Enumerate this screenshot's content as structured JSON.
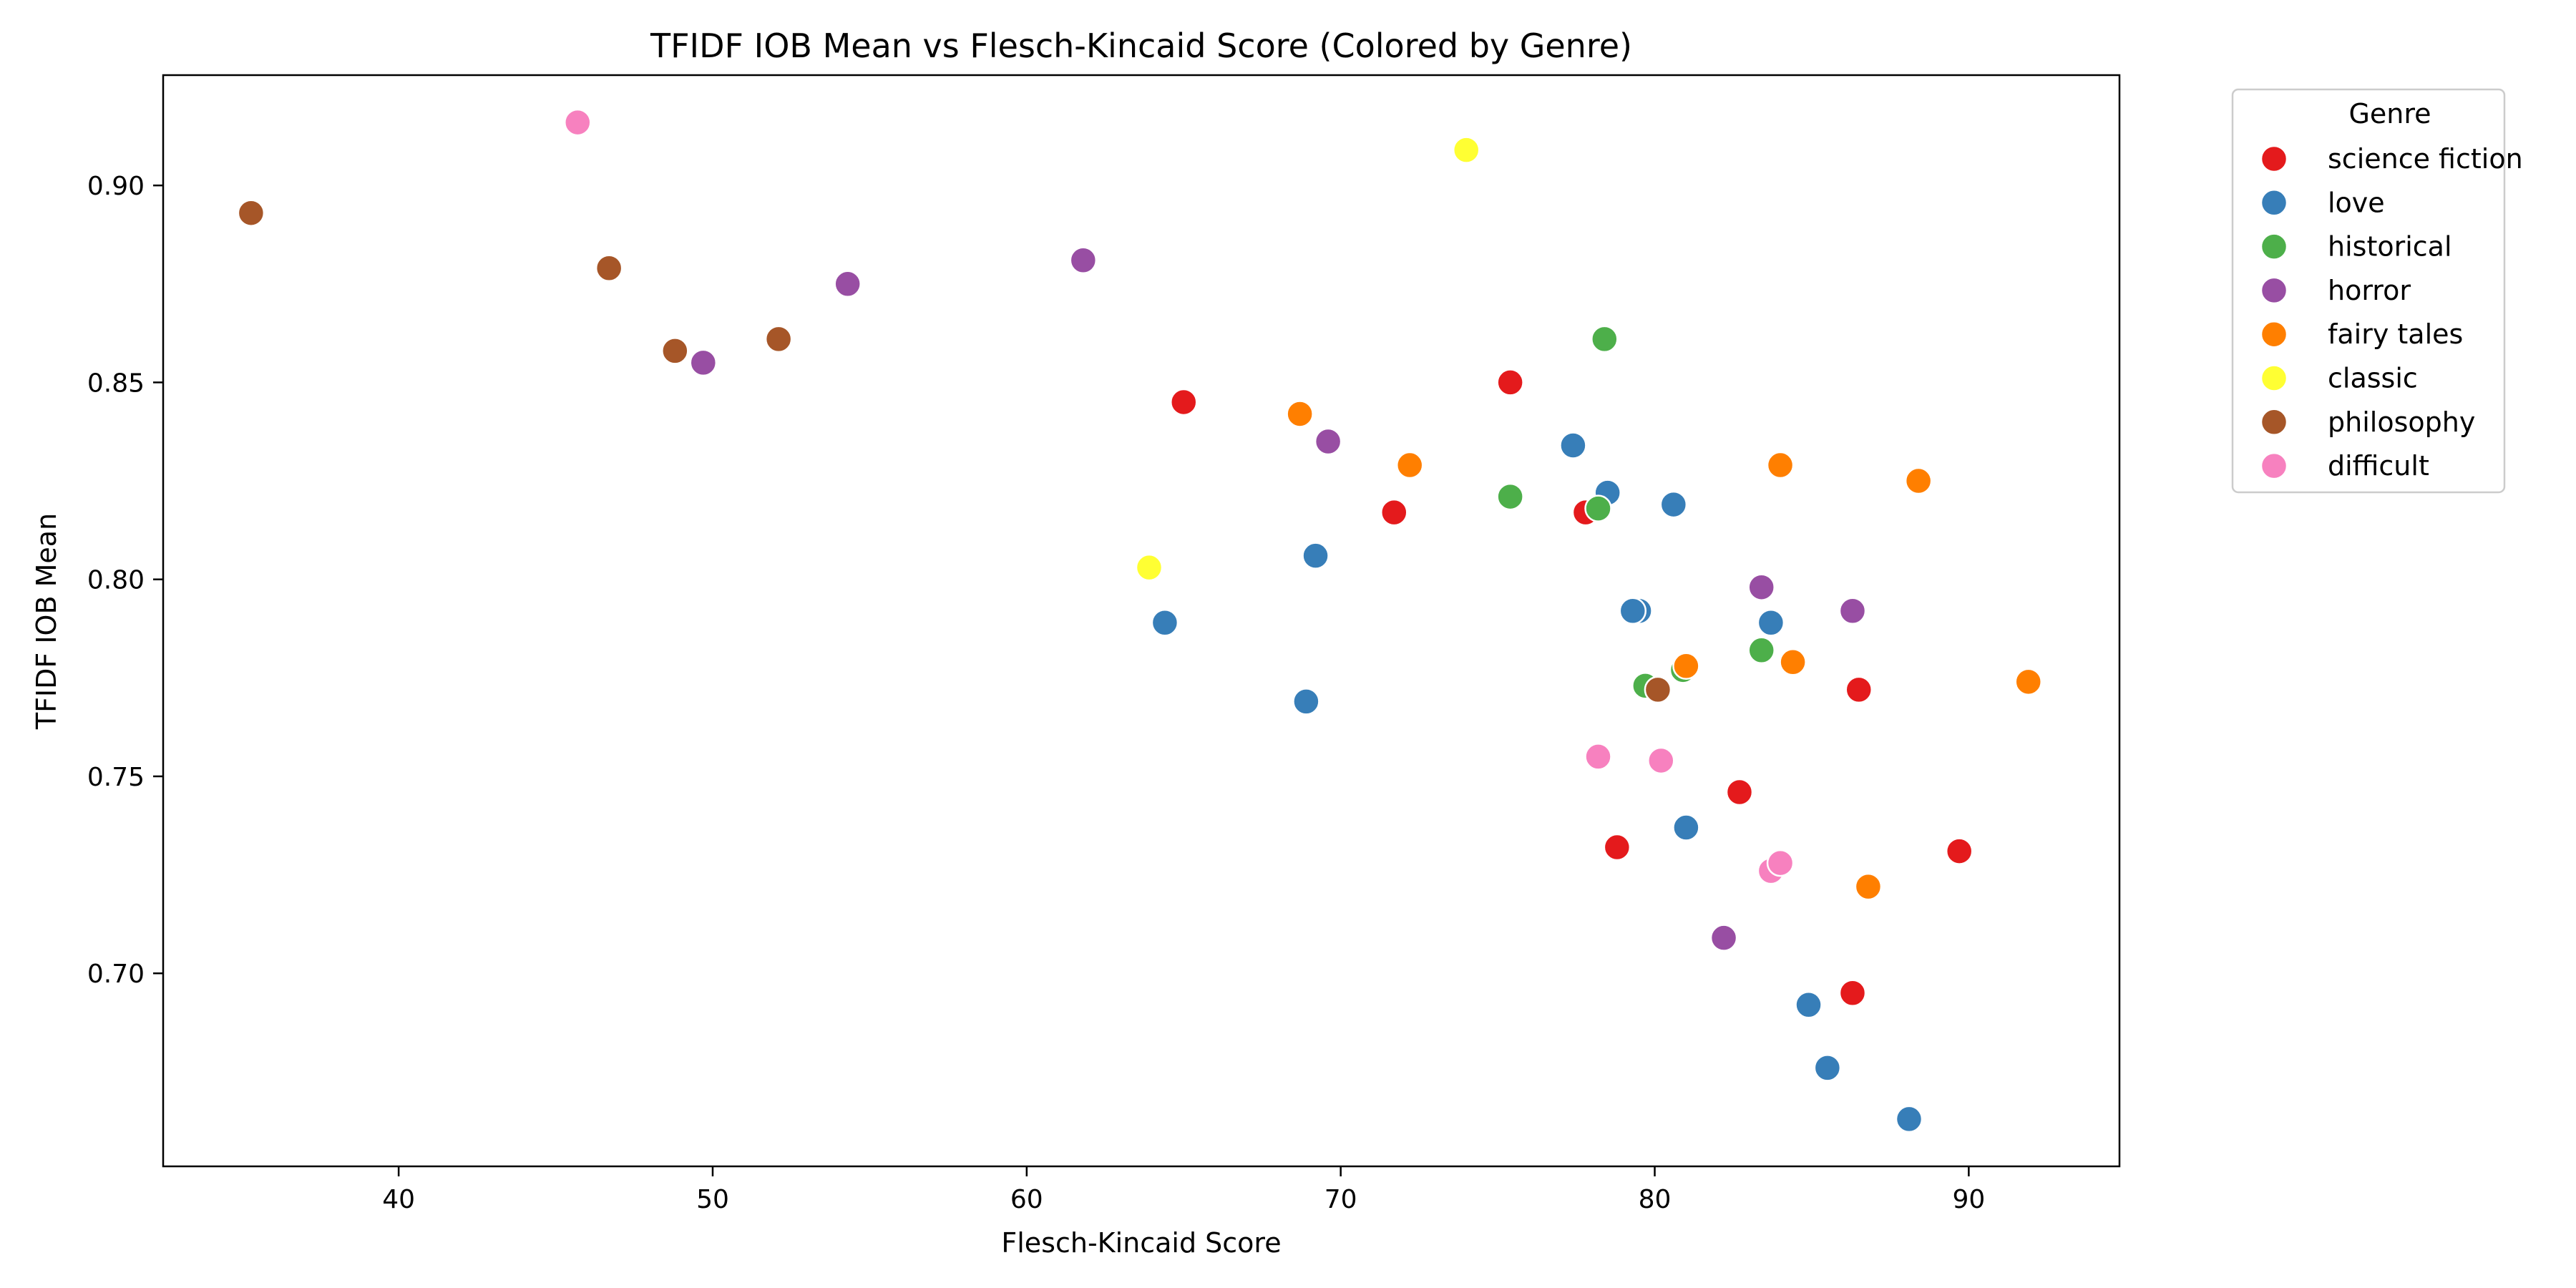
{
  "chart_data": {
    "type": "scatter",
    "title": "TFIDF IOB Mean vs Flesch-Kincaid Score (Colored by Genre)",
    "xlabel": "Flesch-Kincaid Score",
    "ylabel": "TFIDF IOB Mean",
    "xlim": [
      32.5,
      94.8
    ],
    "ylim": [
      0.651,
      0.928
    ],
    "x_ticks": [
      40,
      50,
      60,
      70,
      80,
      90
    ],
    "x_tick_labels": [
      "40",
      "50",
      "60",
      "70",
      "80",
      "90"
    ],
    "y_ticks": [
      0.7,
      0.75,
      0.8,
      0.85,
      0.9
    ],
    "y_tick_labels": [
      "0.70",
      "0.75",
      "0.80",
      "0.85",
      "0.90"
    ],
    "grid": false,
    "legend": {
      "title": "Genre",
      "placement": "outside-upper-right"
    },
    "series": [
      {
        "name": "science fiction",
        "color": "#e41a1c",
        "points": [
          [
            65.0,
            0.845
          ],
          [
            75.4,
            0.85
          ],
          [
            71.7,
            0.817
          ],
          [
            77.8,
            0.817
          ],
          [
            82.7,
            0.746
          ],
          [
            78.8,
            0.732
          ],
          [
            86.5,
            0.772
          ],
          [
            89.7,
            0.731
          ],
          [
            86.3,
            0.695
          ]
        ]
      },
      {
        "name": "love",
        "color": "#377eb8",
        "points": [
          [
            77.4,
            0.834
          ],
          [
            78.5,
            0.822
          ],
          [
            80.6,
            0.819
          ],
          [
            69.2,
            0.806
          ],
          [
            64.4,
            0.789
          ],
          [
            79.5,
            0.792
          ],
          [
            79.3,
            0.792
          ],
          [
            83.7,
            0.789
          ],
          [
            68.9,
            0.769
          ],
          [
            81.0,
            0.737
          ],
          [
            84.9,
            0.692
          ],
          [
            85.5,
            0.676
          ],
          [
            88.1,
            0.663
          ]
        ]
      },
      {
        "name": "historical",
        "color": "#4daf4a",
        "points": [
          [
            78.4,
            0.861
          ],
          [
            75.4,
            0.821
          ],
          [
            78.2,
            0.818
          ],
          [
            83.4,
            0.782
          ],
          [
            80.9,
            0.777
          ],
          [
            79.7,
            0.773
          ]
        ]
      },
      {
        "name": "horror",
        "color": "#984ea3",
        "points": [
          [
            61.8,
            0.881
          ],
          [
            54.3,
            0.875
          ],
          [
            49.7,
            0.855
          ],
          [
            69.6,
            0.835
          ],
          [
            83.4,
            0.798
          ],
          [
            86.3,
            0.792
          ],
          [
            82.2,
            0.709
          ]
        ]
      },
      {
        "name": "fairy tales",
        "color": "#ff7f00",
        "points": [
          [
            68.7,
            0.842
          ],
          [
            72.2,
            0.829
          ],
          [
            84.0,
            0.829
          ],
          [
            88.4,
            0.825
          ],
          [
            81.0,
            0.778
          ],
          [
            84.4,
            0.779
          ],
          [
            91.9,
            0.774
          ],
          [
            86.8,
            0.722
          ]
        ]
      },
      {
        "name": "classic",
        "color": "#ffff33",
        "points": [
          [
            74.0,
            0.909
          ],
          [
            63.9,
            0.803
          ]
        ]
      },
      {
        "name": "philosophy",
        "color": "#a65628",
        "points": [
          [
            35.3,
            0.893
          ],
          [
            46.7,
            0.879
          ],
          [
            48.8,
            0.858
          ],
          [
            52.1,
            0.861
          ],
          [
            80.1,
            0.772
          ]
        ]
      },
      {
        "name": "difficult",
        "color": "#f781bf",
        "points": [
          [
            45.7,
            0.916
          ],
          [
            78.2,
            0.755
          ],
          [
            80.2,
            0.754
          ],
          [
            83.7,
            0.726
          ],
          [
            84.0,
            0.728
          ]
        ]
      }
    ]
  }
}
